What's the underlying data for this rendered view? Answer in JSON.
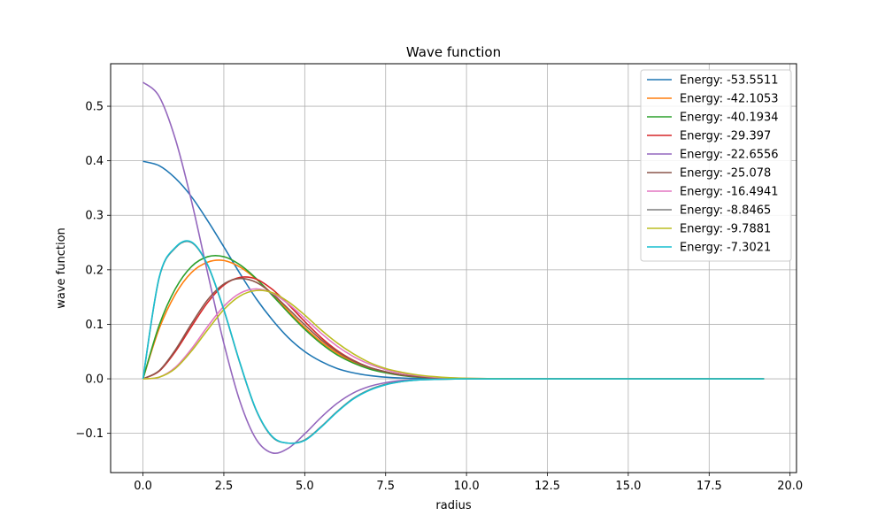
{
  "chart_data": {
    "type": "line",
    "title": "Wave function",
    "xlabel": "radius",
    "ylabel": "wave function",
    "xlim": [
      -1.0,
      20.2
    ],
    "ylim": [
      -0.172,
      0.578
    ],
    "xticks": [
      0.0,
      2.5,
      5.0,
      7.5,
      10.0,
      12.5,
      15.0,
      17.5,
      20.0
    ],
    "xtick_labels": [
      "0.0",
      "2.5",
      "5.0",
      "7.5",
      "10.0",
      "12.5",
      "15.0",
      "17.5",
      "20.0"
    ],
    "yticks": [
      -0.1,
      0.0,
      0.1,
      0.2,
      0.3,
      0.4,
      0.5
    ],
    "ytick_labels": [
      "−0.1",
      "0.0",
      "0.1",
      "0.2",
      "0.3",
      "0.4",
      "0.5"
    ],
    "grid": true,
    "legend_position": "top-right",
    "x": [
      0,
      0.5,
      1,
      1.5,
      2,
      2.5,
      3,
      3.5,
      4,
      4.5,
      5,
      5.5,
      6,
      6.5,
      7,
      7.5,
      8,
      8.5,
      9,
      9.5,
      10,
      11,
      12,
      13,
      14,
      15,
      16,
      17,
      18,
      19.2
    ],
    "series": [
      {
        "name": "Energy: -53.5511",
        "color": "#1f77b4",
        "values": [
          0.399,
          0.391,
          0.368,
          0.334,
          0.29,
          0.242,
          0.193,
          0.147,
          0.108,
          0.075,
          0.05,
          0.032,
          0.019,
          0.011,
          0.006,
          0.003,
          0.0015,
          0.0007,
          0.0003,
          0.0001,
          0,
          0,
          0,
          0,
          0,
          0,
          0,
          0,
          0,
          0
        ]
      },
      {
        "name": "Energy: -42.1053",
        "color": "#ff7f0e",
        "values": [
          0,
          0.092,
          0.155,
          0.195,
          0.214,
          0.217,
          0.205,
          0.183,
          0.155,
          0.124,
          0.094,
          0.068,
          0.047,
          0.031,
          0.02,
          0.012,
          0.007,
          0.004,
          0.002,
          0.001,
          0.0005,
          0.0001,
          0,
          0,
          0,
          0,
          0,
          0,
          0,
          0
        ]
      },
      {
        "name": "Energy: -40.1934",
        "color": "#2ca02c",
        "values": [
          0,
          0.098,
          0.165,
          0.206,
          0.224,
          0.224,
          0.209,
          0.184,
          0.153,
          0.121,
          0.091,
          0.065,
          0.044,
          0.029,
          0.018,
          0.011,
          0.006,
          0.003,
          0.0017,
          0.0009,
          0.0004,
          0.0001,
          0,
          0,
          0,
          0,
          0,
          0,
          0,
          0
        ]
      },
      {
        "name": "Energy: -29.397",
        "color": "#d62728",
        "values": [
          0,
          0.014,
          0.05,
          0.096,
          0.14,
          0.172,
          0.186,
          0.183,
          0.164,
          0.136,
          0.105,
          0.076,
          0.052,
          0.034,
          0.021,
          0.013,
          0.007,
          0.004,
          0.002,
          0.001,
          0.0005,
          0.0001,
          0,
          0,
          0,
          0,
          0,
          0,
          0,
          0
        ]
      },
      {
        "name": "Energy: -22.6556",
        "color": "#9467bd",
        "values": [
          0.544,
          0.518,
          0.44,
          0.326,
          0.194,
          0.065,
          -0.042,
          -0.111,
          -0.136,
          -0.127,
          -0.101,
          -0.071,
          -0.045,
          -0.026,
          -0.014,
          -0.007,
          -0.003,
          -0.0015,
          -0.0006,
          -0.0002,
          0,
          0,
          0,
          0,
          0,
          0,
          0,
          0,
          0,
          0
        ]
      },
      {
        "name": "Energy: -25.078",
        "color": "#8c564b",
        "values": [
          0,
          0.015,
          0.053,
          0.101,
          0.145,
          0.174,
          0.184,
          0.177,
          0.156,
          0.128,
          0.099,
          0.072,
          0.05,
          0.033,
          0.021,
          0.013,
          0.007,
          0.004,
          0.002,
          0.001,
          0.0005,
          0.0001,
          0,
          0,
          0,
          0,
          0,
          0,
          0,
          0
        ]
      },
      {
        "name": "Energy: -16.4941",
        "color": "#e377c2",
        "values": [
          0,
          0.003,
          0.021,
          0.055,
          0.096,
          0.133,
          0.157,
          0.165,
          0.157,
          0.137,
          0.111,
          0.084,
          0.06,
          0.041,
          0.027,
          0.017,
          0.01,
          0.006,
          0.003,
          0.0017,
          0.0009,
          0.0002,
          0,
          0,
          0,
          0,
          0,
          0,
          0,
          0
        ]
      },
      {
        "name": "Energy: -8.8465",
        "color": "#7f7f7f",
        "values": [
          0,
          0.185,
          0.24,
          0.25,
          0.208,
          0.126,
          0.028,
          -0.058,
          -0.107,
          -0.118,
          -0.112,
          -0.088,
          -0.06,
          -0.036,
          -0.02,
          -0.01,
          -0.005,
          -0.002,
          -0.001,
          -0.0004,
          -0.0001,
          0,
          0,
          0,
          0,
          0,
          0,
          0,
          0,
          0
        ]
      },
      {
        "name": "Energy: -9.7881",
        "color": "#bcbd22",
        "values": [
          0,
          0.003,
          0.019,
          0.051,
          0.09,
          0.127,
          0.152,
          0.162,
          0.158,
          0.141,
          0.117,
          0.09,
          0.066,
          0.046,
          0.03,
          0.019,
          0.012,
          0.007,
          0.004,
          0.002,
          0.001,
          0.0003,
          0,
          0,
          0,
          0,
          0,
          0,
          0,
          0
        ]
      },
      {
        "name": "Energy: -7.3021",
        "color": "#17becf",
        "values": [
          0,
          0.186,
          0.241,
          0.251,
          0.209,
          0.127,
          0.029,
          -0.057,
          -0.106,
          -0.118,
          -0.113,
          -0.089,
          -0.061,
          -0.037,
          -0.021,
          -0.011,
          -0.005,
          -0.002,
          -0.001,
          -0.0004,
          -0.0001,
          0,
          0,
          0,
          0,
          0,
          0,
          0,
          0,
          0
        ]
      }
    ]
  }
}
